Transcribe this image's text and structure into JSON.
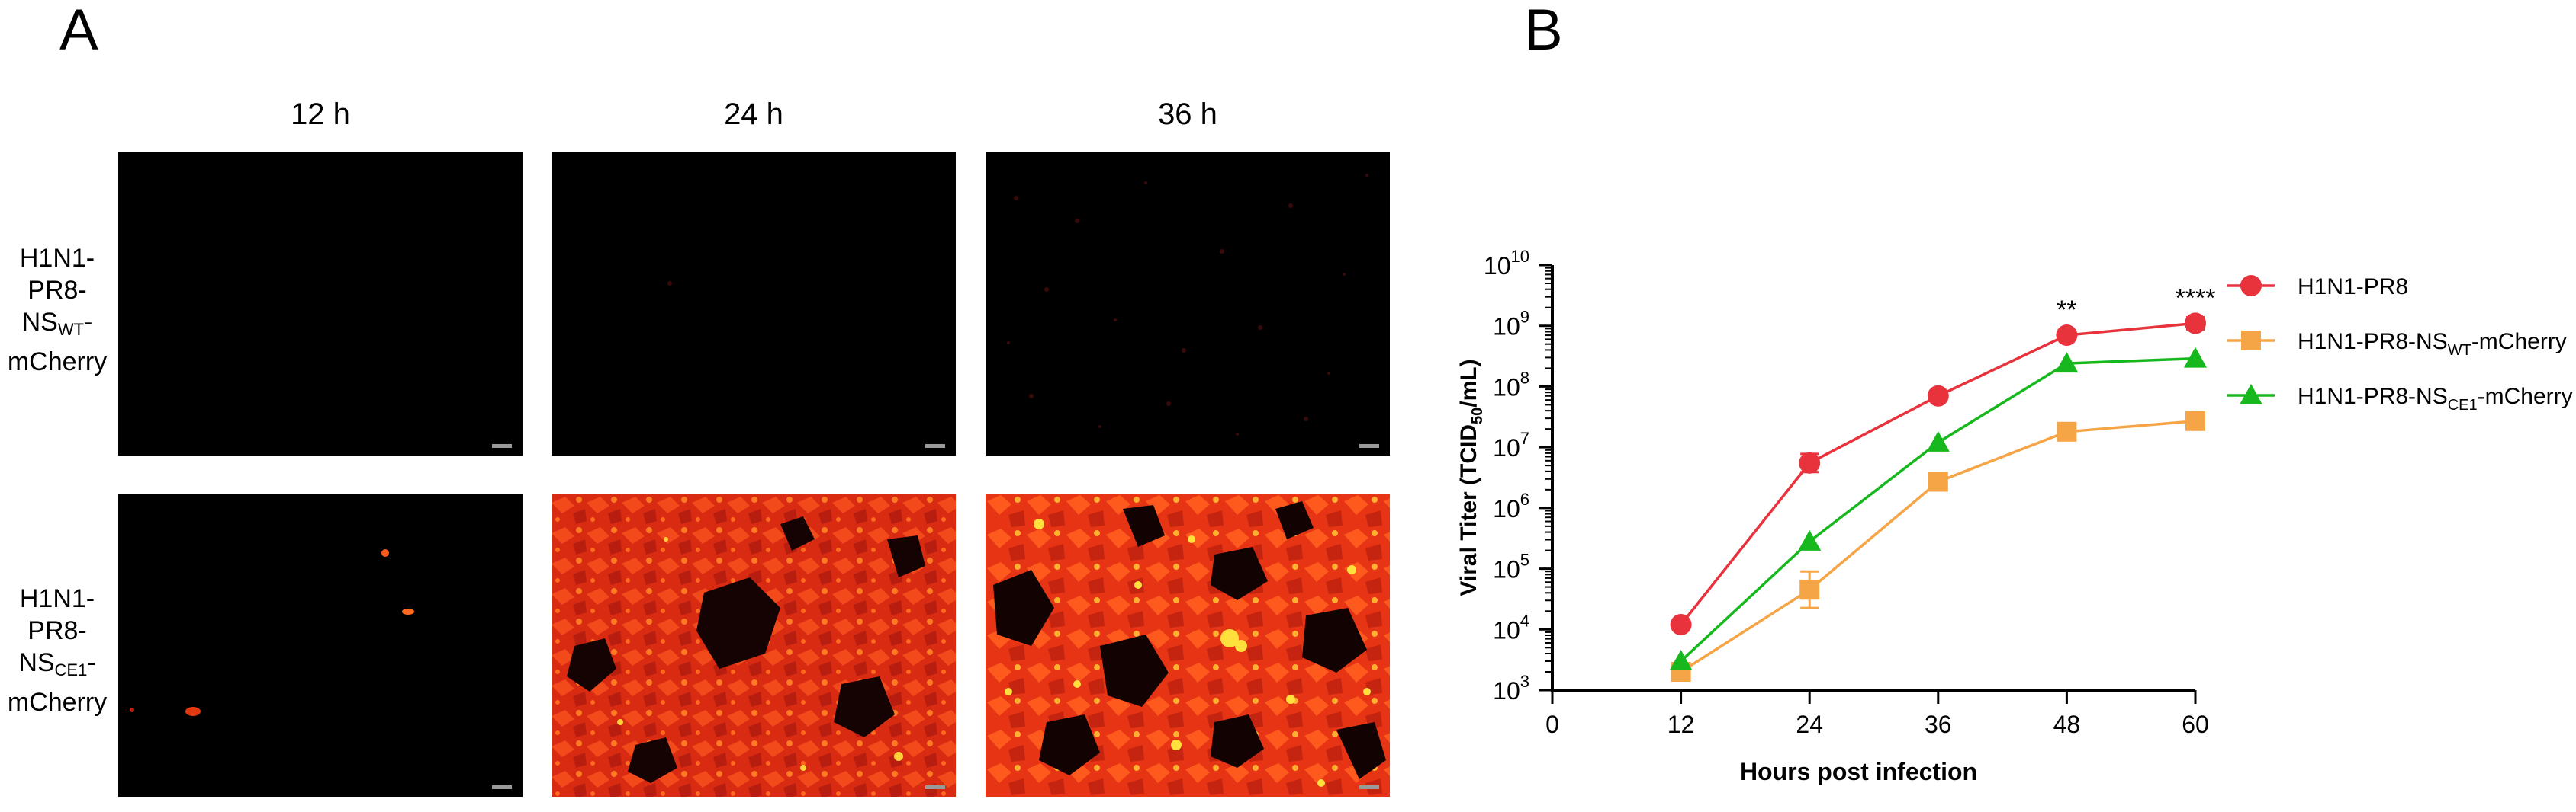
{
  "panel_a": {
    "letter": "A",
    "columns": [
      "12 h",
      "24 h",
      "36 h"
    ],
    "rows": [
      {
        "lines": [
          "H1N1-",
          "PR8-"
        ],
        "ns_prefix": "NS",
        "ns_sub": "WT",
        "ns_suffix": "-",
        "last": "mCherry"
      },
      {
        "lines": [
          "H1N1-",
          "PR8-"
        ],
        "ns_prefix": "NS",
        "ns_sub": "CE1",
        "ns_suffix": "-",
        "last": "mCherry"
      }
    ]
  },
  "panel_b": {
    "letter": "B",
    "chart_data": {
      "type": "line",
      "xlabel": "Hours post infection",
      "ylabel_main": "Viral Titer (TCID",
      "ylabel_sub": "50",
      "ylabel_tail": "/mL)",
      "x_ticks": [
        0,
        12,
        24,
        36,
        48,
        60
      ],
      "xlim": [
        0,
        60
      ],
      "y_scale": "log10",
      "y_tick_exponents": [
        3,
        4,
        5,
        6,
        7,
        8,
        9,
        10
      ],
      "y_tick_base": "10",
      "ylim": [
        1000,
        10000000000
      ],
      "legend_placement": "right",
      "series": [
        {
          "name": "H1N1-PR8",
          "name_prefix": "H1N1-PR8",
          "name_sub": "",
          "name_suffix": "",
          "color": "#e8323c",
          "marker": "circle",
          "x": [
            12,
            24,
            36,
            48,
            60
          ],
          "y": [
            12000,
            5500000,
            70000000,
            700000000,
            1100000000
          ],
          "err": [
            0,
            0.15,
            0,
            0.04,
            0.1
          ]
        },
        {
          "name": "H1N1-PR8-NSWT-mCherry",
          "name_prefix": "H1N1-PR8-NS",
          "name_sub": "WT",
          "name_suffix": "-mCherry",
          "color": "#f5a546",
          "marker": "square",
          "x": [
            12,
            24,
            36,
            48,
            60
          ],
          "y": [
            2000,
            45000,
            2700000,
            18000000,
            27000000
          ],
          "err": [
            0,
            0.3,
            0,
            0,
            0
          ]
        },
        {
          "name": "H1N1-PR8-NSCE1-mCherry",
          "name_prefix": "H1N1-PR8-NS",
          "name_sub": "CE1",
          "name_suffix": "-mCherry",
          "color": "#17b81e",
          "marker": "triangle",
          "x": [
            12,
            24,
            36,
            48,
            60
          ],
          "y": [
            3000,
            280000,
            12000000,
            240000000,
            290000000
          ],
          "err": [
            0,
            0,
            0,
            0,
            0
          ]
        }
      ],
      "annotations": [
        {
          "x": 48,
          "text": "**"
        },
        {
          "x": 60,
          "text": "****"
        }
      ]
    }
  }
}
